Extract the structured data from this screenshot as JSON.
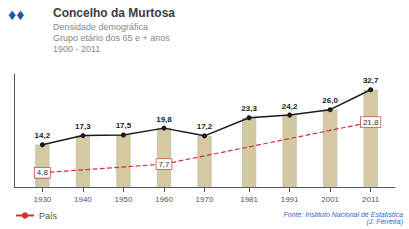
{
  "chart_data": {
    "type": "bar",
    "title": "Concelho da Murtosa",
    "subtitle": [
      "Densidade demográfica",
      "Grupo etário dos 65 e + anos",
      "1900 - 2011"
    ],
    "x": [
      1930,
      1940,
      1950,
      1960,
      1970,
      1981,
      1991,
      2001,
      2011
    ],
    "xlim": [
      1923,
      2017
    ],
    "xticks": [
      1930,
      1940,
      1950,
      1960,
      1970,
      1981,
      1991,
      2001,
      2011
    ],
    "ylim": [
      0,
      38
    ],
    "yticks": [],
    "tick_labels": "x",
    "grid": false,
    "data_labels": true,
    "legend": "bottom left",
    "series": [
      {
        "type": "bar",
        "color": "#d4c9a0",
        "values": [
          14.2,
          17.3,
          17.5,
          19.8,
          17.2,
          23.3,
          24.2,
          26.0,
          32.7
        ],
        "value_labels": [
          "14,2",
          "17,3",
          "17,5",
          "19,8",
          "17,2",
          "23,3",
          "24,2",
          "26,0",
          "32,7"
        ]
      },
      {
        "type": "line",
        "color": "#1a1a1a",
        "marker": "circle",
        "line_style": "solid",
        "values": [
          14.2,
          17.3,
          17.5,
          19.8,
          17.2,
          23.3,
          24.2,
          26.0,
          32.7
        ]
      },
      {
        "name": "País",
        "type": "line",
        "color": "#cc3333",
        "line_style": "dashed",
        "x": [
          1930,
          1960,
          2011
        ],
        "values": [
          4.8,
          7.7,
          21.8
        ],
        "value_labels": [
          "4,8",
          "7,7",
          "21,8"
        ]
      }
    ],
    "annotations": [
      "♦♦",
      "Fonte: Instituto Nacional de Estatística\n(J. Ferreira)"
    ]
  }
}
